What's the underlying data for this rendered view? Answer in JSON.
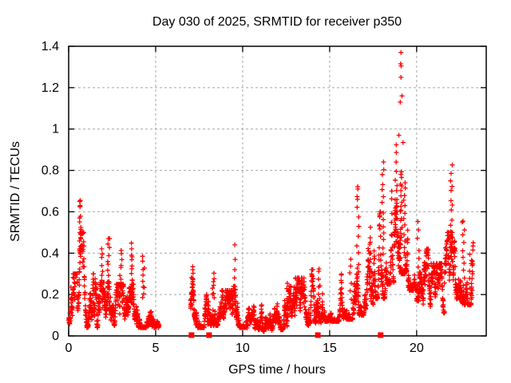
{
  "chart_data": {
    "type": "scatter",
    "title": "Day 030 of 2025, SRMTID for receiver p350",
    "xlabel": "GPS time / hours",
    "ylabel": "SRMTID / TECUs",
    "xlim": [
      0,
      24
    ],
    "ylim": [
      0,
      1.4
    ],
    "xticks": [
      0,
      5,
      10,
      15,
      20
    ],
    "xtick_labels": [
      "0",
      "5",
      "10",
      "15",
      "20"
    ],
    "yticks": [
      0,
      0.2,
      0.4,
      0.6,
      0.8,
      1,
      1.2,
      1.4
    ],
    "ytick_labels": [
      "0",
      "0.2",
      "0.4",
      "0.6",
      "0.8",
      "1",
      "1.2",
      "1.4"
    ],
    "grid": true,
    "legend": "none",
    "marker": "plus",
    "marker_color": "#ff0000",
    "grid_color": "#a6a6a6",
    "border_color": "#000000",
    "seed": 7,
    "bias": 1.9,
    "band_segments": [
      [
        0.0,
        0.55,
        75,
        0.05,
        0.3
      ],
      [
        0.55,
        0.95,
        60,
        0.07,
        0.5
      ],
      [
        0.95,
        1.6,
        95,
        0.04,
        0.3
      ],
      [
        1.6,
        2.6,
        140,
        0.04,
        0.26
      ],
      [
        2.6,
        3.9,
        180,
        0.05,
        0.25
      ],
      [
        3.9,
        5.2,
        175,
        0.04,
        0.2
      ],
      [
        7.0,
        7.25,
        40,
        0.08,
        0.32
      ],
      [
        7.25,
        8.0,
        100,
        0.04,
        0.2
      ],
      [
        8.0,
        8.6,
        85,
        0.05,
        0.28
      ],
      [
        8.6,
        9.4,
        110,
        0.04,
        0.22
      ],
      [
        9.4,
        10.2,
        110,
        0.04,
        0.24
      ],
      [
        10.2,
        11.0,
        110,
        0.03,
        0.18
      ],
      [
        11.0,
        11.8,
        110,
        0.02,
        0.15
      ],
      [
        11.8,
        12.8,
        135,
        0.03,
        0.24
      ],
      [
        12.8,
        13.8,
        135,
        0.05,
        0.28
      ],
      [
        13.8,
        14.6,
        110,
        0.06,
        0.32
      ],
      [
        14.6,
        15.6,
        135,
        0.07,
        0.3
      ],
      [
        15.6,
        16.4,
        110,
        0.08,
        0.32
      ],
      [
        16.4,
        17.0,
        82,
        0.1,
        0.38
      ],
      [
        17.0,
        17.6,
        82,
        0.12,
        0.46
      ],
      [
        17.6,
        18.2,
        82,
        0.18,
        0.6
      ],
      [
        18.2,
        18.7,
        70,
        0.25,
        0.7
      ],
      [
        18.7,
        19.5,
        110,
        0.3,
        0.78
      ],
      [
        19.5,
        20.0,
        70,
        0.22,
        0.6
      ],
      [
        20.0,
        20.8,
        110,
        0.14,
        0.42
      ],
      [
        20.8,
        21.6,
        110,
        0.11,
        0.35
      ],
      [
        21.6,
        22.3,
        95,
        0.17,
        0.5
      ],
      [
        22.3,
        23.25,
        130,
        0.15,
        0.45
      ]
    ],
    "spikes": [
      [
        0.65,
        0.3,
        0.65,
        12
      ],
      [
        1.95,
        0.22,
        0.42,
        9
      ],
      [
        2.3,
        0.24,
        0.47,
        10
      ],
      [
        3.0,
        0.2,
        0.42,
        10
      ],
      [
        3.6,
        0.22,
        0.44,
        12
      ],
      [
        4.3,
        0.18,
        0.38,
        10
      ],
      [
        7.1,
        0.15,
        0.33,
        8
      ],
      [
        8.3,
        0.18,
        0.3,
        8
      ],
      [
        12.6,
        0.14,
        0.26,
        6
      ],
      [
        14.4,
        0.15,
        0.33,
        8
      ],
      [
        16.2,
        0.18,
        0.38,
        6
      ],
      [
        16.62,
        0.3,
        0.72,
        10
      ],
      [
        17.35,
        0.25,
        0.52,
        8
      ],
      [
        18.05,
        0.4,
        0.84,
        14
      ],
      [
        18.8,
        0.45,
        0.92,
        12
      ],
      [
        19.1,
        0.45,
        0.8,
        18
      ],
      [
        19.3,
        0.4,
        0.75,
        12
      ],
      [
        20.1,
        0.25,
        0.55,
        8
      ],
      [
        22.0,
        0.35,
        0.82,
        16
      ],
      [
        22.7,
        0.25,
        0.55,
        10
      ],
      [
        23.1,
        0.2,
        0.4,
        8
      ]
    ],
    "outliers": [
      [
        19.1,
        1.37
      ],
      [
        19.08,
        1.315
      ],
      [
        19.11,
        1.305
      ],
      [
        19.1,
        1.25
      ],
      [
        19.16,
        1.16
      ],
      [
        19.06,
        1.13
      ],
      [
        18.98,
        0.97
      ],
      [
        19.22,
        0.935
      ],
      [
        16.62,
        0.71
      ],
      [
        16.6,
        0.66
      ],
      [
        9.55,
        0.44
      ],
      [
        9.57,
        0.37
      ],
      [
        9.55,
        0.32
      ],
      [
        9.53,
        0.28
      ],
      [
        0.64,
        0.65
      ],
      [
        0.66,
        0.63
      ],
      [
        0.63,
        0.57
      ],
      [
        0.7,
        0.525
      ],
      [
        2.28,
        0.47
      ],
      [
        22.62,
        0.55
      ]
    ],
    "axis_markers": {
      "shape": "filled-square",
      "color": "#ff0000",
      "y": 0,
      "x": [
        7.06,
        8.07,
        14.32,
        17.93
      ]
    }
  }
}
